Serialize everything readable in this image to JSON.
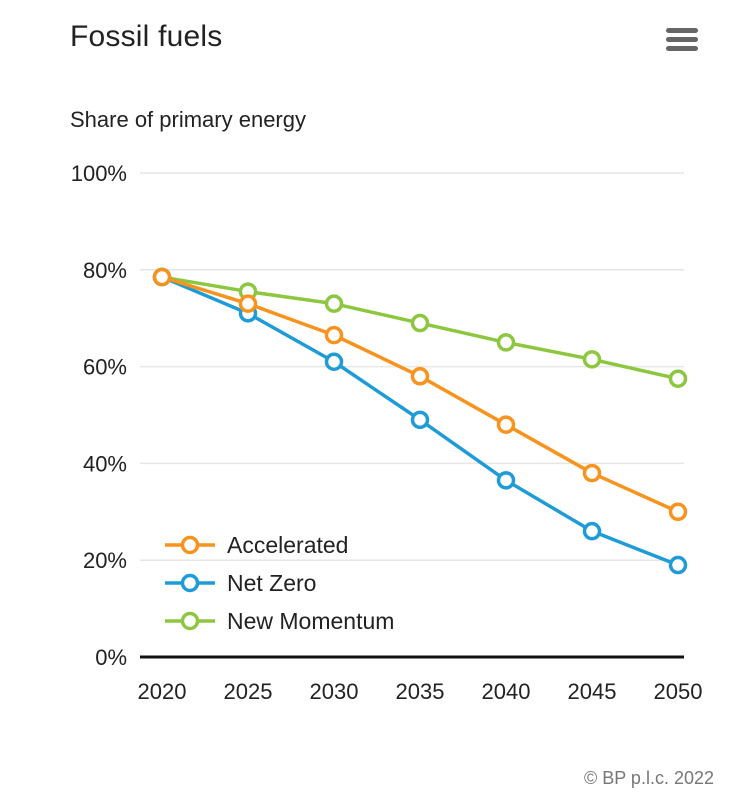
{
  "header": {
    "title": "Fossil fuels",
    "menu_icon": "hamburger-menu-icon"
  },
  "credits": "© BP p.l.c. 2022",
  "chart_data": {
    "type": "line",
    "title": "Fossil fuels",
    "subtitle": "",
    "xlabel": "",
    "ylabel": "Share of primary energy",
    "x": [
      2020,
      2025,
      2030,
      2035,
      2040,
      2045,
      2050
    ],
    "x_tick_labels": [
      "2020",
      "2025",
      "2030",
      "2035",
      "2040",
      "2045",
      "2050"
    ],
    "ylim": [
      0,
      100
    ],
    "y_ticks": [
      0,
      20,
      40,
      60,
      80,
      100
    ],
    "y_tick_labels": [
      "0%",
      "20%",
      "40%",
      "60%",
      "80%",
      "100%"
    ],
    "grid": true,
    "legend_position": "bottom-left",
    "series": [
      {
        "name": "Accelerated",
        "color": "#f7931e",
        "values": [
          78.5,
          73,
          66.5,
          58,
          48,
          38,
          30
        ]
      },
      {
        "name": "Net Zero",
        "color": "#1f9bd7",
        "values": [
          78.5,
          71,
          61,
          49,
          36.5,
          26,
          19
        ]
      },
      {
        "name": "New Momentum",
        "color": "#8dc63f",
        "values": [
          78.5,
          75.5,
          73,
          69,
          65,
          61.5,
          57.5
        ]
      }
    ]
  }
}
